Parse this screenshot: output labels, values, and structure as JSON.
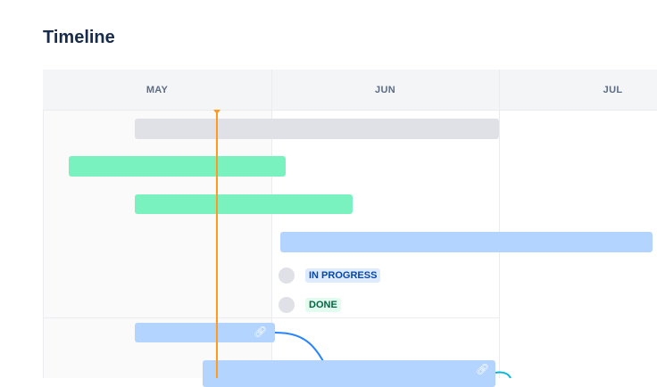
{
  "title": "Timeline",
  "months": [
    "MAY",
    "JUN",
    "JUL"
  ],
  "statuses": [
    {
      "label": "IN PROGRESS",
      "color": "#0747a6",
      "bg": "#deebff"
    },
    {
      "label": "DONE",
      "color": "#006644",
      "bg": "#e3fcef"
    }
  ],
  "colors": {
    "today": "#ff991f",
    "green": "#79f2c0",
    "blue": "#b3d4ff",
    "gray": "#dfe1e6"
  },
  "icons": {
    "link": "link-icon"
  }
}
